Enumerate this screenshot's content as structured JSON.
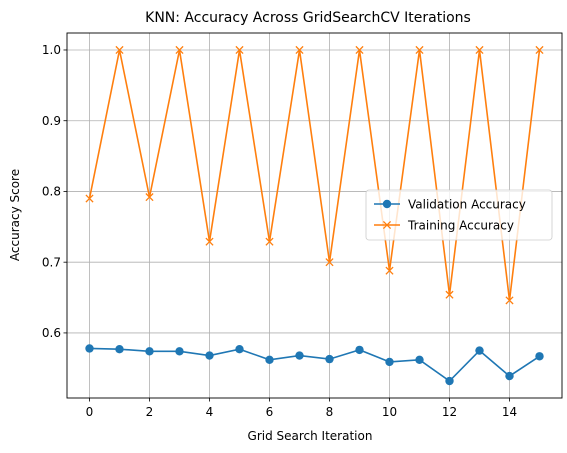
{
  "chart_data": {
    "type": "line",
    "title": "KNN: Accuracy Across GridSearchCV Iterations",
    "xlabel": "Grid Search Iteration",
    "ylabel": "Accuracy Score",
    "xlim": [
      -0.75,
      15.75
    ],
    "ylim": [
      0.508,
      1.024
    ],
    "xticks": [
      0,
      2,
      4,
      6,
      8,
      10,
      12,
      14
    ],
    "yticks": [
      0.6,
      0.7,
      0.8,
      0.9,
      1.0
    ],
    "xtick_labels": [
      "0",
      "2",
      "4",
      "6",
      "8",
      "10",
      "12",
      "14"
    ],
    "ytick_labels": [
      "0.6",
      "0.7",
      "0.8",
      "0.9",
      "1.0"
    ],
    "grid": true,
    "legend_position": "center-right",
    "x": [
      0,
      1,
      2,
      3,
      4,
      5,
      6,
      7,
      8,
      9,
      10,
      11,
      12,
      13,
      14,
      15
    ],
    "series": [
      {
        "name": "Validation Accuracy",
        "color": "#1f77b4",
        "marker": "circle",
        "values": [
          0.578,
          0.577,
          0.574,
          0.574,
          0.568,
          0.577,
          0.562,
          0.568,
          0.563,
          0.576,
          0.559,
          0.562,
          0.532,
          0.575,
          0.539,
          0.567
        ]
      },
      {
        "name": "Training Accuracy",
        "color": "#ff7f0e",
        "marker": "x",
        "values": [
          0.79,
          1.0,
          0.792,
          1.0,
          0.729,
          1.0,
          0.729,
          1.0,
          0.7,
          1.0,
          0.688,
          1.0,
          0.654,
          1.0,
          0.646,
          1.0
        ]
      }
    ]
  }
}
